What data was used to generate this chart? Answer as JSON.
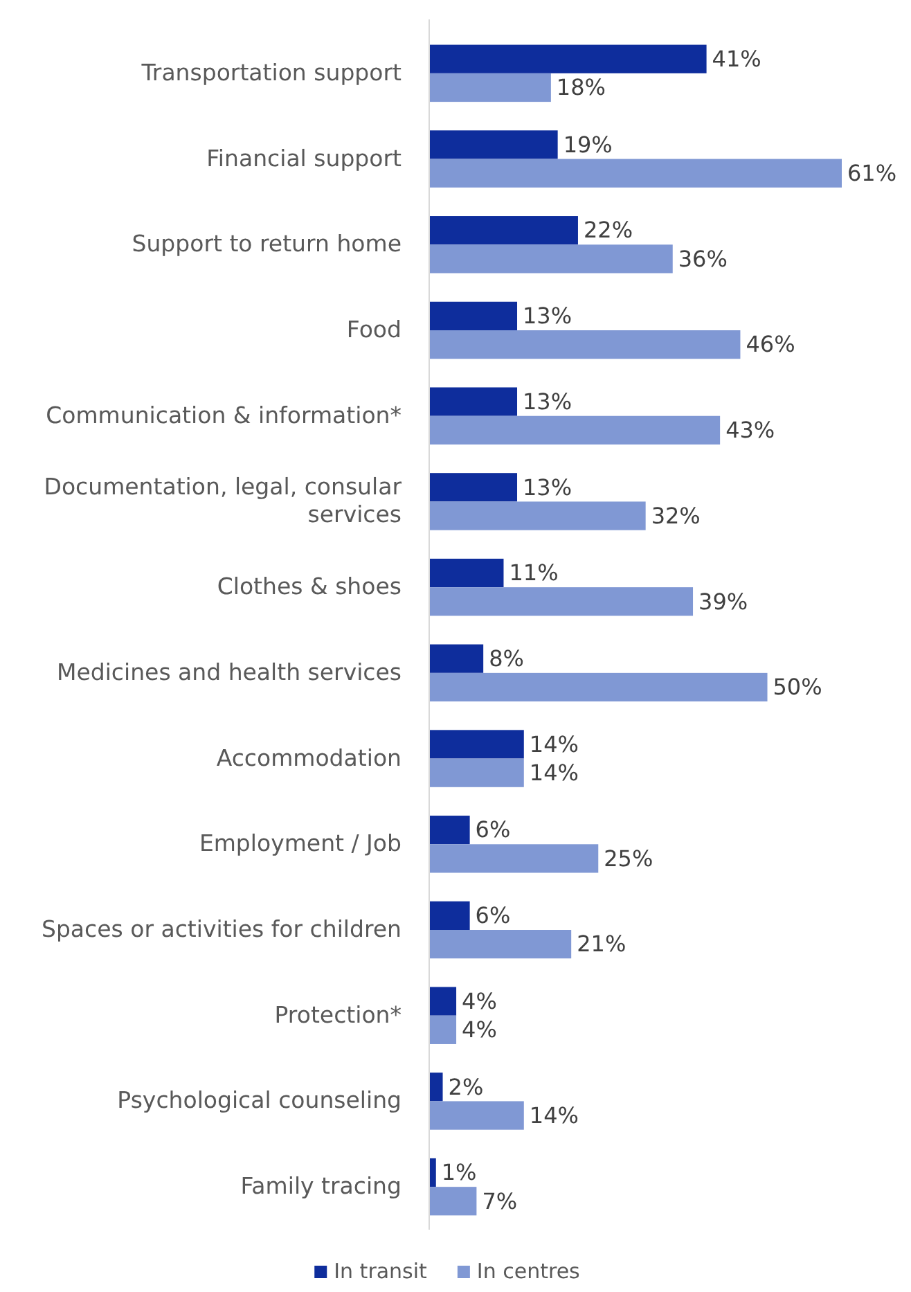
{
  "chart_data": {
    "type": "bar",
    "orientation": "horizontal",
    "legend": "bottom",
    "categories": [
      "Transportation support",
      "Financial support",
      "Support to return home",
      "Food",
      "Communication & information*",
      "Documentation, legal, consular services",
      "Clothes & shoes",
      "Medicines and health services",
      "Accommodation",
      "Employment / Job",
      "Spaces or activities for children",
      "Protection*",
      "Psychological counseling",
      "Family tracing"
    ],
    "series": [
      {
        "name": "In transit",
        "color": "#0e2d9c",
        "values": [
          41,
          19,
          22,
          13,
          13,
          13,
          11,
          8,
          14,
          6,
          6,
          4,
          2,
          1
        ],
        "value_labels": [
          "41%",
          "19%",
          "22%",
          "13%",
          "13%",
          "13%",
          "11%",
          "8%",
          "14%",
          "6%",
          "6%",
          "4%",
          "2%",
          "1%"
        ]
      },
      {
        "name": "In centres",
        "color": "#8098d4",
        "values": [
          18,
          61,
          36,
          46,
          43,
          32,
          39,
          50,
          14,
          25,
          21,
          4,
          14,
          7
        ],
        "value_labels": [
          "18%",
          "61%",
          "36%",
          "46%",
          "43%",
          "32%",
          "39%",
          "50%",
          "14%",
          "25%",
          "21%",
          "4%",
          "14%",
          "7%"
        ]
      }
    ]
  }
}
